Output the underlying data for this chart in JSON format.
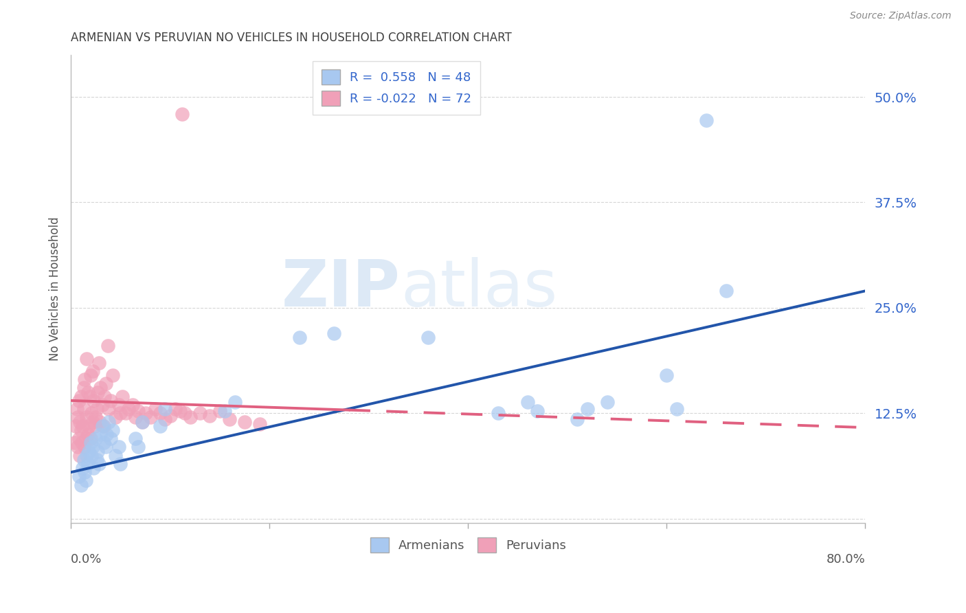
{
  "title": "ARMENIAN VS PERUVIAN NO VEHICLES IN HOUSEHOLD CORRELATION CHART",
  "source": "Source: ZipAtlas.com",
  "ylabel": "No Vehicles in Household",
  "watermark_zip": "ZIP",
  "watermark_atlas": "atlas",
  "xlim": [
    0.0,
    0.8
  ],
  "ylim": [
    -0.005,
    0.55
  ],
  "yticks": [
    0.0,
    0.125,
    0.25,
    0.375,
    0.5
  ],
  "ytick_labels": [
    "",
    "12.5%",
    "25.0%",
    "37.5%",
    "50.0%"
  ],
  "xticks": [
    0.0,
    0.2,
    0.4,
    0.6,
    0.8
  ],
  "legend_blue_label": "R =  0.558   N = 48",
  "legend_pink_label": "R = -0.022   N = 72",
  "armenian_color": "#A8C8F0",
  "peruvian_color": "#F0A0B8",
  "line_blue": "#2255AA",
  "line_pink": "#E06080",
  "background_color": "#FFFFFF",
  "grid_color": "#CCCCCC",
  "title_color": "#404040",
  "source_color": "#888888",
  "armenians_x": [
    0.008,
    0.01,
    0.012,
    0.013,
    0.014,
    0.015,
    0.016,
    0.017,
    0.018,
    0.02,
    0.021,
    0.022,
    0.023,
    0.025,
    0.026,
    0.027,
    0.028,
    0.03,
    0.032,
    0.033,
    0.035,
    0.036,
    0.038,
    0.04,
    0.042,
    0.045,
    0.048,
    0.05,
    0.065,
    0.068,
    0.072,
    0.09,
    0.095,
    0.155,
    0.165,
    0.23,
    0.265,
    0.36,
    0.43,
    0.46,
    0.47,
    0.51,
    0.52,
    0.54,
    0.6,
    0.61,
    0.64,
    0.66
  ],
  "armenians_y": [
    0.05,
    0.04,
    0.06,
    0.07,
    0.055,
    0.045,
    0.075,
    0.065,
    0.08,
    0.09,
    0.075,
    0.085,
    0.06,
    0.095,
    0.07,
    0.08,
    0.065,
    0.1,
    0.11,
    0.09,
    0.085,
    0.1,
    0.115,
    0.095,
    0.105,
    0.075,
    0.085,
    0.065,
    0.095,
    0.085,
    0.115,
    0.11,
    0.13,
    0.128,
    0.138,
    0.215,
    0.22,
    0.215,
    0.125,
    0.138,
    0.128,
    0.118,
    0.13,
    0.138,
    0.17,
    0.13,
    0.472,
    0.27
  ],
  "peruvians_x": [
    0.004,
    0.005,
    0.006,
    0.007,
    0.007,
    0.008,
    0.008,
    0.009,
    0.009,
    0.01,
    0.01,
    0.011,
    0.012,
    0.013,
    0.013,
    0.014,
    0.014,
    0.015,
    0.016,
    0.016,
    0.017,
    0.017,
    0.018,
    0.019,
    0.02,
    0.02,
    0.021,
    0.022,
    0.022,
    0.023,
    0.024,
    0.025,
    0.026,
    0.027,
    0.028,
    0.029,
    0.03,
    0.032,
    0.033,
    0.034,
    0.035,
    0.037,
    0.038,
    0.04,
    0.042,
    0.045,
    0.048,
    0.05,
    0.052,
    0.055,
    0.058,
    0.062,
    0.065,
    0.068,
    0.072,
    0.075,
    0.08,
    0.085,
    0.09,
    0.095,
    0.1,
    0.105,
    0.11,
    0.115,
    0.12,
    0.13,
    0.14,
    0.15,
    0.16,
    0.175,
    0.19,
    0.112
  ],
  "peruvians_y": [
    0.09,
    0.11,
    0.13,
    0.085,
    0.12,
    0.095,
    0.14,
    0.075,
    0.115,
    0.105,
    0.145,
    0.09,
    0.11,
    0.13,
    0.155,
    0.085,
    0.165,
    0.095,
    0.12,
    0.19,
    0.1,
    0.15,
    0.11,
    0.145,
    0.095,
    0.17,
    0.125,
    0.115,
    0.175,
    0.14,
    0.11,
    0.12,
    0.13,
    0.15,
    0.185,
    0.115,
    0.155,
    0.135,
    0.11,
    0.145,
    0.16,
    0.205,
    0.13,
    0.14,
    0.17,
    0.12,
    0.135,
    0.125,
    0.145,
    0.125,
    0.13,
    0.135,
    0.12,
    0.128,
    0.115,
    0.125,
    0.12,
    0.13,
    0.125,
    0.118,
    0.122,
    0.13,
    0.128,
    0.125,
    0.12,
    0.125,
    0.122,
    0.128,
    0.118,
    0.115,
    0.112,
    0.48
  ],
  "blue_line_x0": 0.0,
  "blue_line_y0": 0.055,
  "blue_line_x1": 0.8,
  "blue_line_y1": 0.27,
  "pink_line_x0": 0.0,
  "pink_line_y0": 0.14,
  "pink_line_x1": 0.8,
  "pink_line_y1": 0.108
}
